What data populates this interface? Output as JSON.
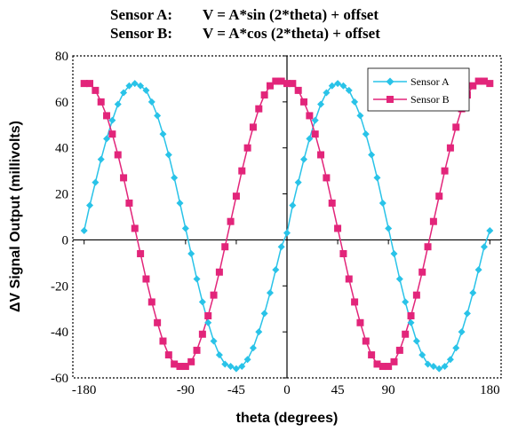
{
  "chart_data": {
    "type": "scatter",
    "title": [
      "Sensor A:",
      "V = A*sin (2*theta) + offset",
      "Sensor B:",
      "V = A*cos (2*theta) + offset"
    ],
    "xlabel": "theta (degrees)",
    "ylabel": "ΔV Signal Output (millivolts)",
    "xlim": [
      -190,
      190
    ],
    "ylim": [
      -60,
      80
    ],
    "xticks": [
      -180,
      -90,
      -45,
      0,
      45,
      90,
      180
    ],
    "yticks": [
      80,
      60,
      40,
      20,
      0,
      -20,
      -40,
      -60
    ],
    "grid": false,
    "legend": "top-right",
    "series": [
      {
        "name": "Sensor A",
        "color": "#29c3e8",
        "marker": "diamond",
        "x": [
          -180,
          -175,
          -170,
          -165,
          -160,
          -155,
          -150,
          -145,
          -140,
          -135,
          -130,
          -125,
          -120,
          -115,
          -110,
          -105,
          -100,
          -95,
          -90,
          -85,
          -80,
          -75,
          -70,
          -65,
          -60,
          -55,
          -50,
          -45,
          -40,
          -35,
          -30,
          -25,
          -20,
          -15,
          -10,
          -5,
          0,
          5,
          10,
          15,
          20,
          25,
          30,
          35,
          40,
          45,
          50,
          55,
          60,
          65,
          70,
          75,
          80,
          85,
          90,
          95,
          100,
          105,
          110,
          115,
          120,
          125,
          130,
          135,
          140,
          145,
          150,
          155,
          160,
          165,
          170,
          175,
          180
        ],
        "y": [
          4,
          15,
          25,
          35,
          44,
          52,
          59,
          64,
          67,
          68,
          67,
          65,
          60,
          54,
          46,
          37,
          27,
          16,
          5,
          -6,
          -17,
          -27,
          -36,
          -44,
          -50,
          -54,
          -55,
          -56,
          -55,
          -52,
          -47,
          -40,
          -32,
          -23,
          -13,
          -3,
          3,
          15,
          25,
          35,
          44,
          52,
          59,
          64,
          67,
          68,
          67,
          65,
          60,
          54,
          46,
          37,
          27,
          16,
          5,
          -6,
          -17,
          -27,
          -36,
          -44,
          -50,
          -54,
          -55,
          -56,
          -55,
          -52,
          -47,
          -40,
          -32,
          -23,
          -13,
          -3,
          4
        ]
      },
      {
        "name": "Sensor B",
        "color": "#e2257a",
        "marker": "square",
        "x": [
          -180,
          -175,
          -170,
          -165,
          -160,
          -155,
          -150,
          -145,
          -140,
          -135,
          -130,
          -125,
          -120,
          -115,
          -110,
          -105,
          -100,
          -95,
          -90,
          -85,
          -80,
          -75,
          -70,
          -65,
          -60,
          -55,
          -50,
          -45,
          -40,
          -35,
          -30,
          -25,
          -20,
          -15,
          -10,
          -5,
          0,
          5,
          10,
          15,
          20,
          25,
          30,
          35,
          40,
          45,
          50,
          55,
          60,
          65,
          70,
          75,
          80,
          85,
          90,
          95,
          100,
          105,
          110,
          115,
          120,
          125,
          130,
          135,
          140,
          145,
          150,
          155,
          160,
          165,
          170,
          175,
          180
        ],
        "y": [
          68,
          68,
          65,
          60,
          54,
          46,
          37,
          27,
          16,
          5,
          -6,
          -17,
          -27,
          -36,
          -44,
          -50,
          -54,
          -55,
          -55,
          -53,
          -48,
          -41,
          -33,
          -24,
          -14,
          -3,
          8,
          19,
          30,
          40,
          49,
          57,
          63,
          67,
          69,
          69,
          68,
          68,
          65,
          60,
          54,
          46,
          37,
          27,
          16,
          5,
          -6,
          -17,
          -27,
          -36,
          -44,
          -50,
          -54,
          -55,
          -55,
          -53,
          -48,
          -41,
          -33,
          -24,
          -14,
          -3,
          8,
          19,
          30,
          40,
          49,
          57,
          63,
          67,
          69,
          69,
          68
        ]
      }
    ]
  }
}
